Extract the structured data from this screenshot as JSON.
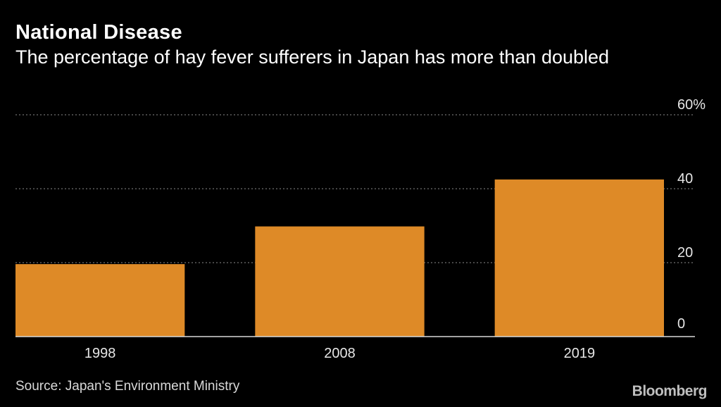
{
  "header": {
    "title": "National Disease",
    "subtitle": "The percentage of hay fever sufferers in Japan has more than doubled"
  },
  "footer": {
    "source": "Source: Japan's Environment Ministry",
    "brand": "Bloomberg"
  },
  "colors": {
    "background": "#000000",
    "bar": "#de8a27",
    "grid": "#8c8c8c",
    "text": "#ffffff",
    "axis_text": "#e6e6e6"
  },
  "chart_data": {
    "type": "bar",
    "title": "National Disease",
    "subtitle": "The percentage of hay fever sufferers in Japan has more than doubled",
    "categories": [
      "1998",
      "2008",
      "2019"
    ],
    "values": [
      19.6,
      29.8,
      42.5
    ],
    "xlabel": "",
    "ylabel": "",
    "ylim": [
      0,
      60
    ],
    "yticks": [
      0,
      20,
      40,
      60
    ],
    "ytick_labels": [
      "0",
      "20",
      "40",
      "60%"
    ],
    "grid": true,
    "y_axis_side": "right",
    "source": "Source: Japan's Environment Ministry"
  }
}
